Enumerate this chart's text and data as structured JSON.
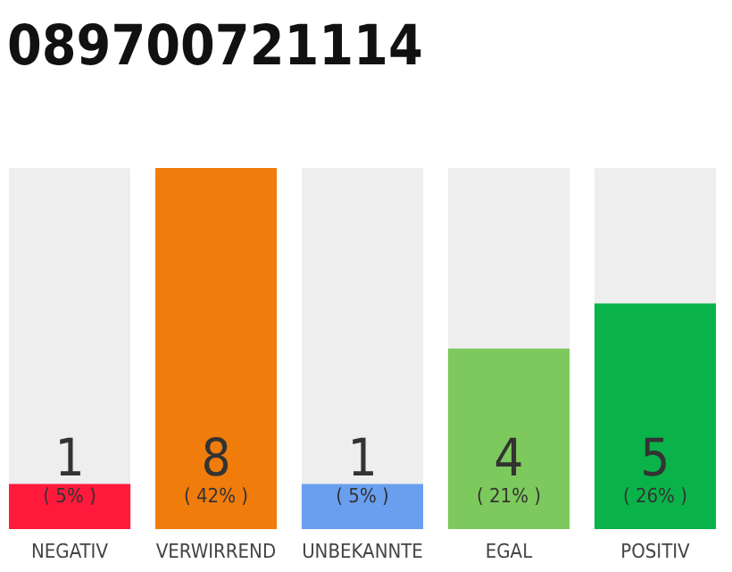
{
  "chart_data": {
    "type": "bar",
    "title": "089700721114",
    "categories": [
      "NEGATIV",
      "VERWIRREND",
      "UNBEKANNTE",
      "EGAL",
      "POSITIV"
    ],
    "values": [
      1,
      8,
      1,
      4,
      5
    ],
    "colors": [
      "#ff1a3c",
      "#f07c0c",
      "#6a9ff0",
      "#7dc95e",
      "#0ab34a"
    ],
    "ylim": [
      0,
      8
    ],
    "tick_labels": "x",
    "data_labels": true,
    "annotations": [
      "( 5% )",
      "( 42% )",
      "( 5% )",
      "( 21% )",
      "( 26% )"
    ]
  }
}
